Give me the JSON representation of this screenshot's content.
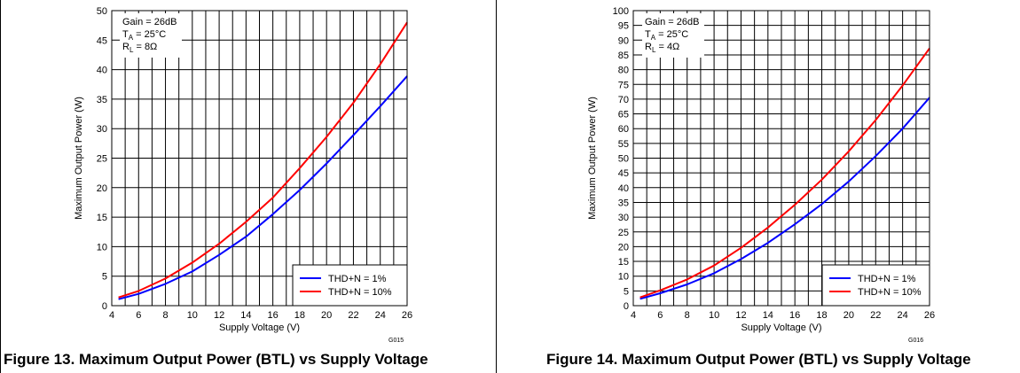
{
  "charts": [
    {
      "figure_caption": "Figure 13. Maximum Output Power (BTL) vs Supply Voltage",
      "figure_code": "G015",
      "conditions": [
        "Gain = 26dB",
        "T",
        "A",
        " = 25°C",
        "R",
        "L",
        " = 8Ω"
      ],
      "x_ticks": [
        "4",
        "6",
        "8",
        "10",
        "12",
        "14",
        "16",
        "18",
        "20",
        "22",
        "24",
        "26"
      ],
      "y_ticks": [
        "0",
        "5",
        "10",
        "15",
        "20",
        "25",
        "30",
        "35",
        "40",
        "45",
        "50"
      ]
    },
    {
      "figure_caption": "Figure 14. Maximum Output Power (BTL) vs Supply Voltage",
      "figure_code": "G016",
      "conditions": [
        "Gain = 26dB",
        "T",
        "A",
        " = 25°C",
        "R",
        "L",
        " = 4Ω"
      ],
      "x_ticks": [
        "4",
        "6",
        "8",
        "10",
        "12",
        "14",
        "16",
        "18",
        "20",
        "22",
        "24",
        "26"
      ],
      "y_ticks": [
        "0",
        "5",
        "10",
        "15",
        "20",
        "25",
        "30",
        "35",
        "40",
        "45",
        "50",
        "55",
        "60",
        "65",
        "70",
        "75",
        "80",
        "85",
        "90",
        "95",
        "100"
      ]
    }
  ],
  "chart_data": [
    {
      "type": "line",
      "xlabel": "Supply Voltage (V)",
      "ylabel": "Maximum Output Power (W)",
      "xlim": [
        4,
        26
      ],
      "ylim": [
        0,
        50
      ],
      "grid": true,
      "legend_position": "bottom-right",
      "series": [
        {
          "name": "THD+N = 1%",
          "color": "#0000ff",
          "x": [
            4.5,
            6,
            8,
            10,
            12,
            14,
            16,
            18,
            20,
            22,
            24,
            26
          ],
          "y": [
            1.1,
            2.0,
            3.7,
            5.8,
            8.6,
            11.7,
            15.5,
            19.6,
            24.1,
            28.9,
            33.8,
            38.9
          ]
        },
        {
          "name": "THD+N = 10%",
          "color": "#ff0000",
          "x": [
            4.5,
            6,
            8,
            10,
            12,
            14,
            16,
            18,
            20,
            22,
            24,
            26
          ],
          "y": [
            1.4,
            2.5,
            4.6,
            7.3,
            10.5,
            14.2,
            18.3,
            23.3,
            28.6,
            34.4,
            40.9,
            48.0
          ]
        }
      ]
    },
    {
      "type": "line",
      "xlabel": "Supply Voltage (V)",
      "ylabel": "Maximum Output Power (W)",
      "xlim": [
        4,
        26
      ],
      "ylim": [
        0,
        100
      ],
      "grid": true,
      "legend_position": "bottom-right",
      "series": [
        {
          "name": "THD+N = 1%",
          "color": "#0000ff",
          "x": [
            4.5,
            6,
            8,
            10,
            12,
            14,
            16,
            18,
            20,
            22,
            24,
            26
          ],
          "y": [
            2.3,
            4.2,
            7.2,
            11.0,
            15.8,
            21.3,
            27.6,
            34.4,
            42.1,
            50.7,
            60.0,
            70.5
          ]
        },
        {
          "name": "THD+N = 10%",
          "color": "#ff0000",
          "x": [
            4.5,
            6,
            8,
            10,
            12,
            14,
            16,
            18,
            20,
            22,
            24,
            26
          ],
          "y": [
            2.8,
            5.2,
            8.9,
            13.6,
            19.6,
            26.5,
            34.2,
            42.7,
            52.3,
            62.9,
            74.6,
            87.2
          ]
        }
      ]
    }
  ]
}
